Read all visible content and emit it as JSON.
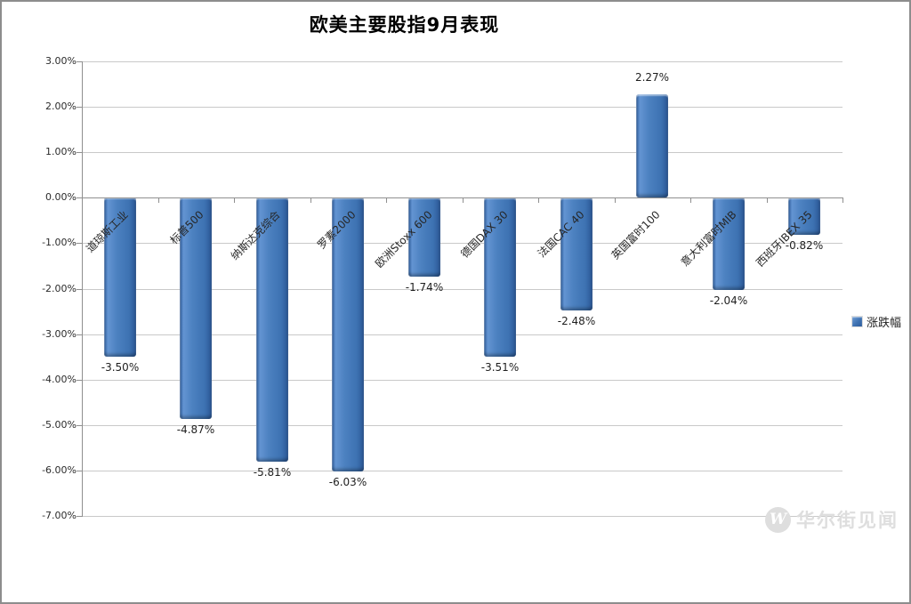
{
  "chart_data": {
    "type": "bar",
    "title": "欧美主要股指9月表现",
    "series": [
      {
        "name": "涨跌幅",
        "values": [
          -3.5,
          -4.87,
          -5.81,
          -6.03,
          -1.74,
          -3.51,
          -2.48,
          2.27,
          -2.04,
          -0.82
        ]
      }
    ],
    "categories": [
      "道琼斯工业",
      "标普500",
      "纳斯达克综合",
      "罗素2000",
      "欧洲Stoxx 600",
      "德国DAX 30",
      "法国CAC 40",
      "英国富时100",
      "意大利富时MIB",
      "西班牙IBEX 35"
    ],
    "data_labels": [
      "-3.50%",
      "-4.87%",
      "-5.81%",
      "-6.03%",
      "-1.74%",
      "-3.51%",
      "-2.48%",
      "2.27%",
      "-2.04%",
      "-0.82%"
    ],
    "ytick_labels": [
      "3.00%",
      "2.00%",
      "1.00%",
      "0.00%",
      "-1.00%",
      "-2.00%",
      "-3.00%",
      "-4.00%",
      "-5.00%",
      "-6.00%",
      "-7.00%"
    ],
    "ylim": [
      -7,
      3
    ],
    "ytick_step": 1,
    "xlabel": "",
    "ylabel": "",
    "grid": true,
    "legend_position": "right",
    "bar_color": "#3f72b2"
  },
  "legend": {
    "label": "涨跌幅",
    "marker_color": "#3f72b2"
  },
  "watermark": {
    "logo_letter": "W",
    "text": "华尔街见闻"
  }
}
